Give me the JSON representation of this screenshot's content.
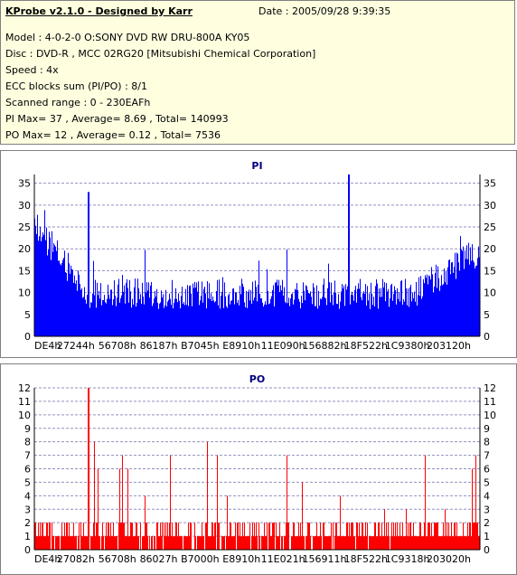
{
  "header": {
    "title": "KProbe v2.1.0 - Designed by Karr",
    "date": "Date : 2005/09/28 9:39:35",
    "lines": [
      "Model : 4-0-2-0 O:SONY    DVD RW DRU-800A  KY05",
      "Disc : DVD-R , MCC 02RG20   [Mitsubishi Chemical Corporation]",
      "Speed : 4x",
      "ECC blocks sum (PI/PO) : 8/1",
      "Scanned range : 0 - 230EAFh",
      "PI Max= 37 , Average= 8.69 , Total= 140993",
      "PO Max= 12 , Average= 0.12 , Total= 7536"
    ]
  },
  "chart_data": [
    {
      "type": "bar",
      "title": "PI",
      "color": "#0000ff",
      "ylim": [
        0,
        37
      ],
      "yticks": [
        0,
        5,
        10,
        15,
        20,
        25,
        30,
        35
      ],
      "xticks": [
        "DE4h",
        "27244h",
        "56708h",
        "86187h",
        "B7045h",
        "E8910h",
        "11E090h",
        "156882h",
        "18F522h",
        "1C9380h",
        "203120h"
      ],
      "grid": true,
      "max": 37,
      "average": 8.69
    },
    {
      "type": "bar",
      "title": "PO",
      "color": "#ff0000",
      "ylim": [
        0,
        12
      ],
      "yticks": [
        0,
        1,
        2,
        3,
        4,
        5,
        6,
        7,
        8,
        9,
        10,
        11,
        12
      ],
      "xticks": [
        "DE4h",
        "27082h",
        "56708h",
        "86027h",
        "B7000h",
        "E8910h",
        "11E021h",
        "156911h",
        "18F522h",
        "1C9318h",
        "203020h"
      ],
      "grid": true,
      "max": 12,
      "average": 0.12
    }
  ]
}
